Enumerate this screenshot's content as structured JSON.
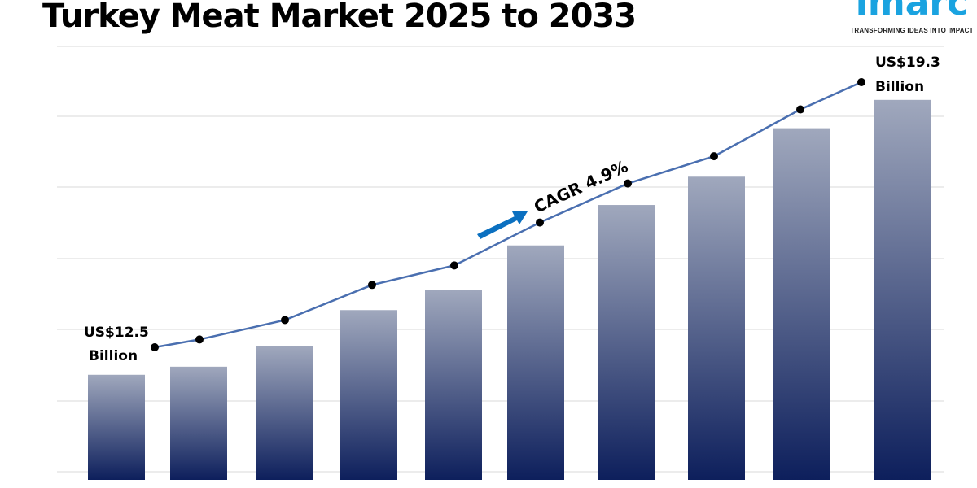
{
  "title": "Turkey Meat Market 2025 to 2033",
  "logo": {
    "word": "imarc",
    "tagline": "TRANSFORMING IDEAS INTO IMPACT"
  },
  "colors": {
    "bar_top": "#a0a8bd",
    "bar_bottom": "#0d1f5c",
    "line": "#4a6fb0",
    "arrow": "#0b70c0",
    "logo": "#1aa3e0"
  },
  "chart_data": {
    "type": "bar",
    "title": "Turkey Meat Market 2025 to 2033",
    "unit": "US$ Billion",
    "values": [
      12.5,
      12.7,
      13.2,
      14.1,
      14.6,
      15.7,
      16.7,
      17.4,
      18.6,
      19.3
    ],
    "line_overlay": true,
    "grid": true,
    "annotations": {
      "start_line1": "US$12.5",
      "start_line2": "Billion",
      "end_line1": "US$19.3",
      "end_line2": "Billion",
      "cagr": "CAGR 4.9%"
    }
  }
}
